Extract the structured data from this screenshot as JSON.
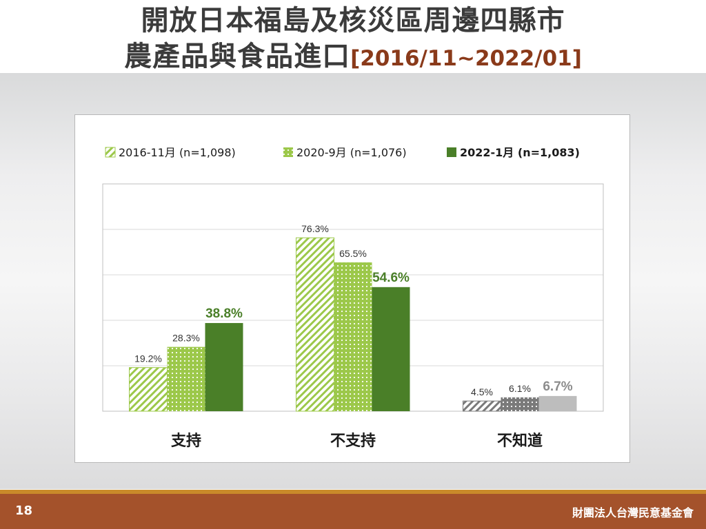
{
  "title": {
    "line1": "開放日本福島及核災區周邊四縣市",
    "line2": "農產品與食品進口",
    "range": "[2016/11~2022/01]"
  },
  "footer": {
    "page_number": "18",
    "org": "財團法人台灣民意基金會"
  },
  "colors": {
    "series1": "#9cc84a",
    "series2": "#9cc84a",
    "series3": "#4a7f28",
    "unknown_series1": "#7a7a7a",
    "unknown_series2": "#7a7a7a",
    "unknown_series3": "#bdbdbd",
    "footer": "#a4522b",
    "title_range": "#8a3a1a"
  },
  "chart_data": {
    "type": "bar",
    "categories": [
      "支持",
      "不支持",
      "不知道"
    ],
    "series": [
      {
        "name": "2016-11月  (n=1,098)",
        "values": [
          19.2,
          76.3,
          4.5
        ]
      },
      {
        "name": "2020-9月  (n=1,076)",
        "values": [
          28.3,
          65.5,
          6.1
        ]
      },
      {
        "name": "2022-1月  (n=1,083)",
        "values": [
          38.8,
          54.6,
          6.7
        ]
      }
    ],
    "labels": [
      [
        "19.2%",
        "76.3%",
        "4.5%"
      ],
      [
        "28.3%",
        "65.5%",
        "6.1%"
      ],
      [
        "38.8%",
        "54.6%",
        "6.7%"
      ]
    ],
    "ylim": [
      0,
      100
    ],
    "grid": true,
    "legend_position": "top"
  }
}
